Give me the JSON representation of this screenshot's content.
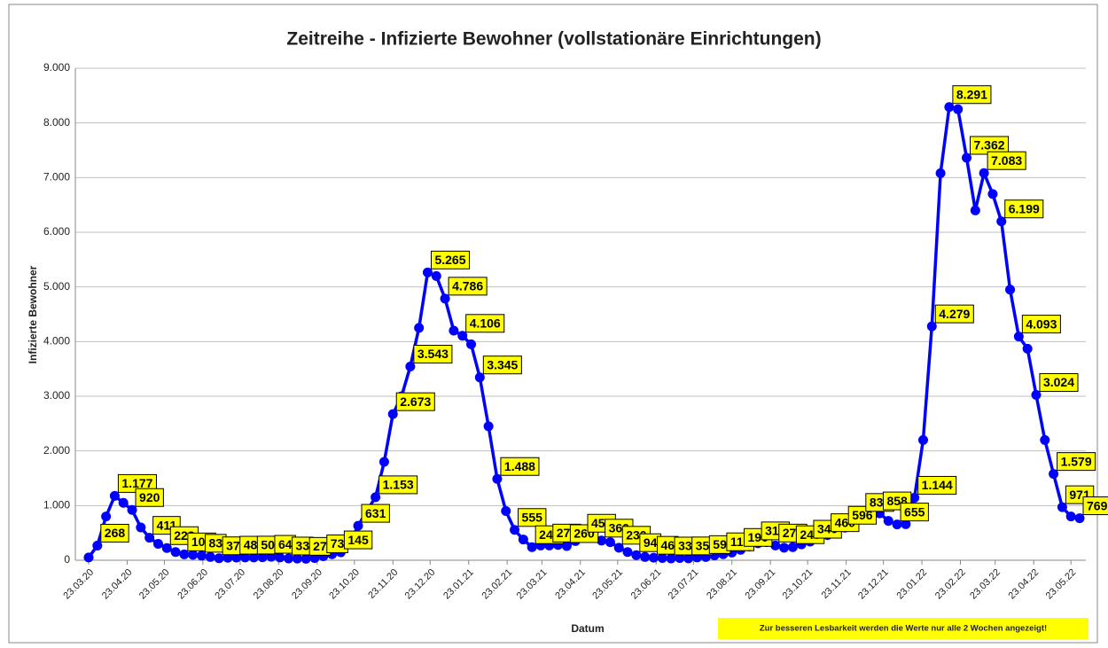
{
  "chart_data": {
    "type": "line",
    "title": "Zeitreihe - Infizierte Bewohner (vollstationäre Einrichtungen)",
    "x_label": "Datum",
    "y_label": "Infizierte Bewohner",
    "note": "Zur besseren Lesbarkeit werden die Werte nur alle 2 Wochen angezeigt!",
    "color": "#0000ff",
    "label_color": "#ffff00",
    "grid": true,
    "x": [
      "23.03.20",
      "30.03.20",
      "06.04.20",
      "13.04.20",
      "20.04.20",
      "27.04.20",
      "04.05.20",
      "11.05.20",
      "18.05.20",
      "25.05.20",
      "01.06.20",
      "08.06.20",
      "15.06.20",
      "22.06.20",
      "29.06.20",
      "06.07.20",
      "13.07.20",
      "20.07.20",
      "27.07.20",
      "03.08.20",
      "10.08.20",
      "17.08.20",
      "24.08.20",
      "31.08.20",
      "07.09.20",
      "14.09.20",
      "21.09.20",
      "28.09.20",
      "05.10.20",
      "12.10.20",
      "19.10.20",
      "26.10.20",
      "02.11.20",
      "09.11.20",
      "16.11.20",
      "23.11.20",
      "30.11.20",
      "07.12.20",
      "14.12.20",
      "21.12.20",
      "28.12.20",
      "04.01.21",
      "11.01.21",
      "18.01.21",
      "25.01.21",
      "01.02.21",
      "08.02.21",
      "15.02.21",
      "22.02.21",
      "01.03.21",
      "08.03.21",
      "15.03.21",
      "22.03.21",
      "29.03.21",
      "05.04.21",
      "12.04.21",
      "19.04.21",
      "26.04.21",
      "03.05.21",
      "10.05.21",
      "17.05.21",
      "24.05.21",
      "31.05.21",
      "07.06.21",
      "14.06.21",
      "21.06.21",
      "28.06.21",
      "05.07.21",
      "12.07.21",
      "19.07.21",
      "26.07.21",
      "02.08.21",
      "09.08.21",
      "16.08.21",
      "23.08.21",
      "30.08.21",
      "06.09.21",
      "13.09.21",
      "20.09.21",
      "27.09.21",
      "04.10.21",
      "11.10.21",
      "18.10.21",
      "25.10.21",
      "01.11.21",
      "08.11.21",
      "15.11.21",
      "22.11.21",
      "29.11.21",
      "06.12.21",
      "13.12.21",
      "20.12.21",
      "27.12.21",
      "03.01.22",
      "10.01.22",
      "17.01.22",
      "24.01.22",
      "31.01.22",
      "07.02.22",
      "14.02.22",
      "21.02.22",
      "28.02.22",
      "07.03.22",
      "14.03.22",
      "21.03.22",
      "28.03.22",
      "04.04.22",
      "11.04.22",
      "18.04.22",
      "25.04.22",
      "02.05.22",
      "09.05.22",
      "16.05.22",
      "23.05.22",
      "30.05.22"
    ],
    "values": [
      50,
      268,
      800,
      1177,
      1050,
      920,
      600,
      411,
      300,
      223,
      150,
      108,
      100,
      83,
      60,
      37,
      45,
      48,
      50,
      50,
      55,
      64,
      50,
      33,
      30,
      27,
      40,
      73,
      110,
      145,
      300,
      631,
      900,
      1153,
      1800,
      2673,
      3000,
      3543,
      4250,
      5265,
      5200,
      4786,
      4200,
      4106,
      3950,
      3345,
      2450,
      1488,
      900,
      555,
      380,
      240,
      270,
      270,
      280,
      260,
      350,
      450,
      480,
      360,
      330,
      230,
      150,
      94,
      60,
      46,
      40,
      33,
      40,
      35,
      50,
      59,
      90,
      110,
      140,
      190,
      250,
      310,
      330,
      270,
      230,
      240,
      290,
      340,
      400,
      460,
      530,
      596,
      720,
      830,
      880,
      858,
      720,
      655,
      660,
      1144,
      2200,
      4279,
      7080,
      8291,
      8250,
      7362,
      6400,
      7083,
      6700,
      6199,
      4950,
      4093,
      3870,
      3024,
      2200,
      1579,
      971,
      800,
      769
    ],
    "value_labels": [
      null,
      "268",
      null,
      "1.177",
      null,
      "920",
      null,
      "411",
      null,
      "223",
      null,
      "108",
      null,
      "83",
      null,
      "37",
      null,
      "48",
      null,
      "50",
      null,
      "64",
      null,
      "33",
      null,
      "27",
      null,
      "73",
      null,
      "145",
      null,
      "631",
      null,
      "1.153",
      null,
      "2.673",
      null,
      "3.543",
      null,
      "5.265",
      null,
      "4.786",
      null,
      "4.106",
      null,
      "3.345",
      null,
      "1.488",
      null,
      "555",
      null,
      "240",
      null,
      "270",
      null,
      "260",
      null,
      "450",
      null,
      "360",
      null,
      "230",
      null,
      "94",
      null,
      "46",
      null,
      "33",
      null,
      "35",
      null,
      "59",
      null,
      "110",
      null,
      "190",
      null,
      "310",
      null,
      "270",
      null,
      "240",
      null,
      "340",
      null,
      "460",
      null,
      "596",
      null,
      "830",
      null,
      "858",
      null,
      "655",
      null,
      "1.144",
      null,
      "4.279",
      null,
      "8.291",
      null,
      "7.362",
      null,
      "7.083",
      null,
      "6.199",
      null,
      "4.093",
      null,
      "3.024",
      null,
      "1.579",
      "971",
      null,
      "769"
    ],
    "xlim": [
      "23.03.20",
      "30.05.22"
    ],
    "xticks": [
      "23.03.20",
      "23.04.20",
      "23.05.20",
      "23.06.20",
      "23.07.20",
      "23.08.20",
      "23.09.20",
      "23.10.20",
      "23.11.20",
      "23.12.20",
      "23.01.21",
      "23.02.21",
      "23.03.21",
      "23.04.21",
      "23.05.21",
      "23.06.21",
      "23.07.21",
      "23.08.21",
      "23.09.21",
      "23.10.21",
      "23.11.21",
      "23.12.21",
      "23.01.22",
      "23.02.22",
      "23.03.22",
      "23.04.22",
      "23.05.22"
    ],
    "ylim": [
      0,
      9000
    ],
    "yticks": [
      0,
      {
        "value": 1000,
        "label": "1.000"
      },
      {
        "value": 2000,
        "label": "2.000"
      },
      {
        "value": 3000,
        "label": "3.000"
      },
      {
        "value": 4000,
        "label": "4.000"
      },
      {
        "value": 5000,
        "label": "5.000"
      },
      {
        "value": 6000,
        "label": "6.000"
      },
      {
        "value": 7000,
        "label": "7.000"
      },
      {
        "value": 8000,
        "label": "8.000"
      },
      {
        "value": 9000,
        "label": "9.000"
      }
    ]
  }
}
